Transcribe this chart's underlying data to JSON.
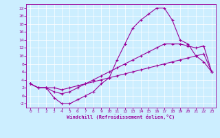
{
  "xlabel": "Windchill (Refroidissement éolien,°C)",
  "background_color": "#cceeff",
  "line_color": "#990099",
  "xlim": [
    -0.5,
    23.5
  ],
  "ylim": [
    -3,
    23
  ],
  "xticks": [
    0,
    1,
    2,
    3,
    4,
    5,
    6,
    7,
    8,
    9,
    10,
    11,
    12,
    13,
    14,
    15,
    16,
    17,
    18,
    19,
    20,
    21,
    22,
    23
  ],
  "yticks": [
    -2,
    0,
    2,
    4,
    6,
    8,
    10,
    12,
    14,
    16,
    18,
    20,
    22
  ],
  "line1_x": [
    0,
    1,
    2,
    3,
    4,
    5,
    6,
    7,
    8,
    9,
    10,
    11,
    12,
    13,
    14,
    15,
    16,
    17,
    18,
    19,
    20,
    21,
    22,
    23
  ],
  "line1_y": [
    3,
    2,
    2,
    -0.5,
    -2,
    -2,
    -1,
    0,
    1,
    3,
    4.5,
    9,
    13,
    17,
    19,
    20.5,
    22,
    22,
    19,
    14,
    13,
    10,
    8.5,
    6
  ],
  "line2_x": [
    0,
    1,
    2,
    3,
    4,
    5,
    6,
    7,
    8,
    9,
    10,
    11,
    12,
    13,
    14,
    15,
    16,
    17,
    18,
    19,
    20,
    21,
    22,
    23
  ],
  "line2_y": [
    3,
    2,
    2,
    1,
    0.5,
    1,
    2,
    3,
    4,
    5,
    6,
    7,
    8,
    9,
    10,
    11,
    12,
    13,
    13,
    13,
    12.5,
    12,
    12.5,
    6
  ],
  "line3_x": [
    0,
    1,
    2,
    3,
    4,
    5,
    6,
    7,
    8,
    9,
    10,
    11,
    12,
    13,
    14,
    15,
    16,
    17,
    18,
    19,
    20,
    21,
    22,
    23
  ],
  "line3_y": [
    3,
    2,
    2,
    2,
    1.5,
    2,
    2.5,
    3,
    3.5,
    4,
    4.5,
    5,
    5.5,
    6,
    6.5,
    7,
    7.5,
    8,
    8.5,
    9,
    9.5,
    10,
    10.5,
    6
  ]
}
